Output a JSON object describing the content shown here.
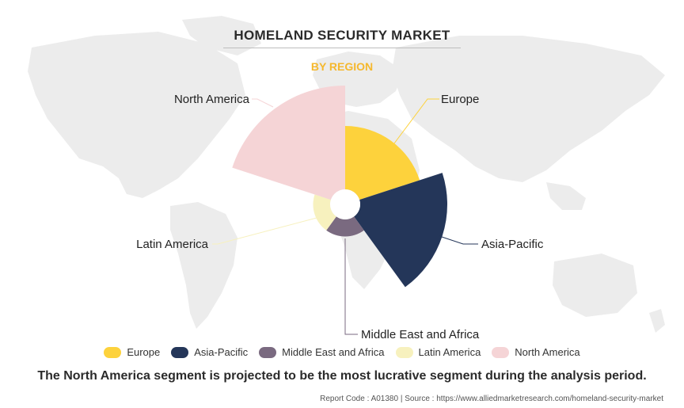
{
  "title": "HOMELAND SECURITY MARKET",
  "subtitle": "BY REGION",
  "chart_data": {
    "type": "polar-area",
    "title": "HOMELAND SECURITY MARKET",
    "subtitle": "BY REGION",
    "segments": [
      {
        "name": "Europe",
        "relative_radius": 0.66,
        "color": "#FDD23C"
      },
      {
        "name": "Asia-Pacific",
        "relative_radius": 0.86,
        "color": "#243659"
      },
      {
        "name": "Middle East and Africa",
        "relative_radius": 0.27,
        "color": "#7A6A80"
      },
      {
        "name": "Latin America",
        "relative_radius": 0.27,
        "color": "#F7F1BE"
      },
      {
        "name": "North America",
        "relative_radius": 1.0,
        "color": "#F5D4D6"
      }
    ],
    "legend": "bottom",
    "grid": false
  },
  "footnote": "The North America segment is projected to be the most lucrative segment during the analysis period.",
  "source": "Report Code : A01380  |  Source : https://www.alliedmarketresearch.com/homeland-security-market"
}
